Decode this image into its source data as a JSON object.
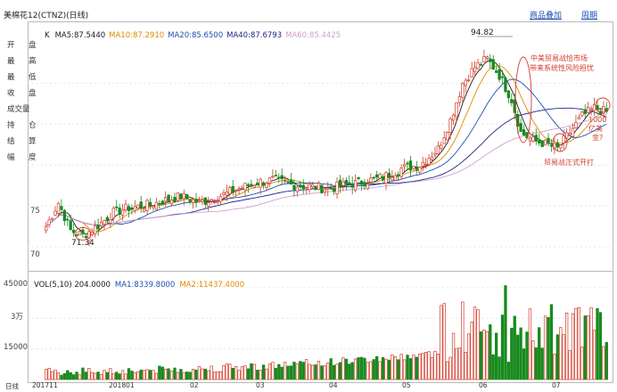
{
  "header": {
    "title": "美棉花12(CTNZ)(日线)",
    "links": [
      "商品叠加",
      "周期"
    ]
  },
  "ma_line": {
    "prefix": "K",
    "items": [
      {
        "text": "MA5:87.5440",
        "color": "#1a1a1a"
      },
      {
        "text": "MA10:87.2910",
        "color": "#e08a00"
      },
      {
        "text": "MA20:85.6500",
        "color": "#1a4fb0"
      },
      {
        "text": "MA40:87.6793",
        "color": "#222288"
      },
      {
        "text": "MA60:85.4425",
        "color": "#d0a0d0"
      }
    ]
  },
  "vol_line": {
    "items": [
      {
        "text": "VOL(5,10) 204.0000",
        "color": "#1a1a1a"
      },
      {
        "text": "MA1:8339.8000",
        "color": "#1a4fb0"
      },
      {
        "text": "MA2:11437.4000",
        "color": "#e08a00"
      }
    ]
  },
  "info_panel_labels": [
    "开",
    "盘",
    "最",
    "高",
    "最",
    "低",
    "收",
    "盘",
    "成交量",
    "持",
    "仓",
    "结",
    "算",
    "幅",
    "度"
  ],
  "annotations": {
    "high_label": "94.82",
    "low_label": "71.34",
    "note1": "中美贸易战恰市场",
    "note2": "带来系统性风险担忧",
    "note3": "1000",
    "note4": "亿美",
    "note5": "金?",
    "note6": "贸易战正式开打"
  },
  "price_axis": [
    "75",
    "70"
  ],
  "volume_axis": [
    "45000",
    "3万",
    "15000"
  ],
  "x_axis": {
    "labels": [
      "日线",
      "201711",
      "201801",
      "02",
      "03",
      "04",
      "05",
      "06",
      "07"
    ]
  },
  "colors": {
    "up": "#d23b2a",
    "down": "#188a1e",
    "ma5": "#1a1a1a",
    "ma10": "#e08a00",
    "ma20": "#1a4fb0",
    "ma40": "#222288",
    "ma60": "#d0a0d0"
  },
  "chart_data": {
    "type": "candlestick",
    "price_ylim": [
      67.5,
      96.5
    ],
    "volume_ylim": [
      0,
      48000
    ],
    "key_points": [
      {
        "label": "low",
        "value": 71.34
      },
      {
        "label": "high",
        "value": 94.82
      }
    ],
    "close_path": [
      {
        "t": 0,
        "v": 72.5
      },
      {
        "t": 4,
        "v": 75.4
      },
      {
        "t": 8,
        "v": 72.0
      },
      {
        "t": 12,
        "v": 71.4
      },
      {
        "t": 17,
        "v": 72.6
      },
      {
        "t": 22,
        "v": 74.2
      },
      {
        "t": 27,
        "v": 74.8
      },
      {
        "t": 32,
        "v": 75.0
      },
      {
        "t": 38,
        "v": 75.6
      },
      {
        "t": 44,
        "v": 76.2
      },
      {
        "t": 50,
        "v": 75.4
      },
      {
        "t": 56,
        "v": 76.1
      },
      {
        "t": 62,
        "v": 77.0
      },
      {
        "t": 68,
        "v": 77.8
      },
      {
        "t": 74,
        "v": 78.2
      },
      {
        "t": 80,
        "v": 77.6
      },
      {
        "t": 86,
        "v": 77.4
      },
      {
        "t": 92,
        "v": 77.1
      },
      {
        "t": 98,
        "v": 77.6
      },
      {
        "t": 104,
        "v": 78.0
      },
      {
        "t": 110,
        "v": 78.5
      },
      {
        "t": 116,
        "v": 79.6
      },
      {
        "t": 122,
        "v": 80.0
      },
      {
        "t": 128,
        "v": 82.0
      },
      {
        "t": 132,
        "v": 85.5
      },
      {
        "t": 136,
        "v": 90.0
      },
      {
        "t": 140,
        "v": 92.0
      },
      {
        "t": 144,
        "v": 93.0
      },
      {
        "t": 148,
        "v": 91.0
      },
      {
        "t": 152,
        "v": 88.0
      },
      {
        "t": 155,
        "v": 84.0
      },
      {
        "t": 159,
        "v": 83.0
      },
      {
        "t": 163,
        "v": 82.6
      },
      {
        "t": 167,
        "v": 82.0
      },
      {
        "t": 171,
        "v": 84.0
      },
      {
        "t": 175,
        "v": 86.0
      },
      {
        "t": 179,
        "v": 87.0
      },
      {
        "t": 183,
        "v": 86.5
      }
    ]
  }
}
